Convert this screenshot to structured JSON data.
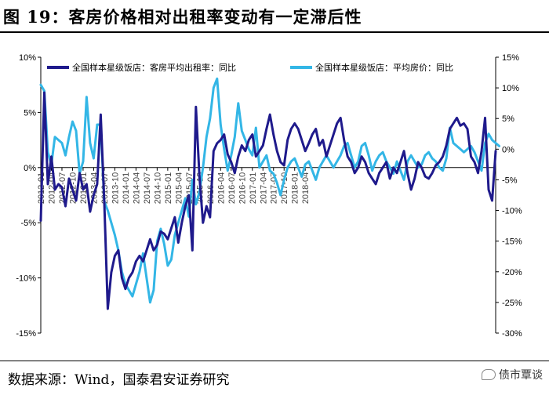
{
  "figure": {
    "title": "图 19：客房价格相对出租率变动有一定滞后性",
    "source": "数据来源：Wind，国泰君安证券研究",
    "watermark": "债市覃谈",
    "watermark_icon": "wechat-icon"
  },
  "chart_data": {
    "type": "line",
    "title": "",
    "x_start": "2012-01",
    "x_end": "2018-04",
    "x_tick_labels": [
      "2012-01",
      "2012-04",
      "2012-07",
      "2012-10",
      "2013-01",
      "2013-04",
      "2013-07",
      "2013-10",
      "2014-01",
      "2014-04",
      "2014-07",
      "2014-10",
      "2015-01",
      "2015-04",
      "2015-07",
      "2015-10",
      "2016-01",
      "2016-04",
      "2016-07",
      "2016-10",
      "2017-01",
      "2017-04",
      "2017-07",
      "2017-10",
      "2018-01",
      "2018-04"
    ],
    "y_left": {
      "min": -15,
      "max": 10,
      "step": 5,
      "unit": "%",
      "tick_labels": [
        "10%",
        "5%",
        "0%",
        "-5%",
        "-10%",
        "-15%"
      ]
    },
    "y_right": {
      "min": -30,
      "max": 15,
      "step": 5,
      "unit": "%",
      "tick_labels": [
        "15%",
        "10%",
        "5%",
        "0%",
        "-5%",
        "-10%",
        "-15%",
        "-20%",
        "-25%",
        "-30%"
      ]
    },
    "legend_position": "top",
    "grid": false,
    "series": [
      {
        "name": "全国样本星级饭店：客房平均出租率：同比",
        "axis": "left",
        "color": "#1f1a8c",
        "values": [
          -4.8,
          6.8,
          -1.5,
          1.0,
          -2.0,
          -1.5,
          -1.8,
          -3.5,
          -1.0,
          -2.0,
          -3.0,
          -0.5,
          -2.0,
          -1.5,
          -4.0,
          -2.5,
          -1.5,
          4.8,
          -3.0,
          -12.8,
          -9.5,
          -8.0,
          -7.5,
          -10.0,
          -11.0,
          -10.0,
          -9.5,
          -8.5,
          -8.0,
          -8.5,
          -7.5,
          -6.5,
          -7.5,
          -7.0,
          -5.8,
          -6.0,
          -6.5,
          -5.5,
          -4.5,
          -6.8,
          -5.0,
          -3.5,
          -2.5,
          -7.5,
          5.5,
          -0.8,
          -5.0,
          -3.5,
          -4.5,
          1.5,
          2.2,
          2.5,
          3.0,
          1.2,
          0.5,
          -0.5,
          1.0,
          2.0,
          1.5,
          2.5,
          3.0,
          1.0,
          1.5,
          2.0,
          3.5,
          4.8,
          3.0,
          1.5,
          0.5,
          0.2,
          2.5,
          3.5,
          4.0,
          3.5,
          2.5,
          1.5,
          2.2,
          3.0,
          3.5,
          2.0,
          2.5,
          1.0,
          2.0,
          3.0,
          4.0,
          4.5,
          2.5,
          1.0,
          0.5,
          -0.5,
          0.0,
          1.0,
          0.5,
          -0.5,
          -1.0,
          -1.5,
          -0.5,
          0.0,
          0.5,
          -1.0,
          0.0,
          -0.5,
          0.5,
          1.5,
          -0.5,
          -2.0,
          -1.0,
          0.5,
          0.0,
          -0.8,
          -1.0,
          -0.5,
          0.2,
          0.5,
          1.0,
          2.0,
          3.5,
          4.0,
          4.5,
          3.8,
          4.0,
          3.5,
          1.0,
          0.5,
          -0.5,
          1.5,
          4.5,
          -2.0,
          -3.0,
          1.5
        ]
      },
      {
        "name": "全国样本星级饭店：平均房价：同比",
        "axis": "right",
        "color": "#33b6e6",
        "values": [
          10.5,
          9.5,
          -0.5,
          -2.5,
          2.0,
          1.5,
          1.0,
          -1.0,
          2.0,
          4.5,
          3.0,
          -4.0,
          -2.0,
          8.5,
          1.0,
          -1.5,
          4.0,
          4.0,
          -8.5,
          -10.0,
          -12.0,
          -14.0,
          -16.5,
          -20.0,
          -22.0,
          -23.0,
          -24.0,
          -22.0,
          -20.0,
          -17.0,
          -21.0,
          -25.0,
          -23.0,
          -15.0,
          -13.0,
          -15.5,
          -19.0,
          -18.0,
          -14.0,
          -12.0,
          -10.0,
          -8.0,
          -11.0,
          -5.0,
          -9.0,
          -7.0,
          -3.0,
          2.0,
          5.0,
          10.0,
          11.5,
          4.0,
          0.0,
          -3.5,
          -1.0,
          2.0,
          7.5,
          3.0,
          1.5,
          0.0,
          -1.0,
          3.5,
          -3.0,
          -2.0,
          -1.0,
          -3.5,
          -4.0,
          -5.5,
          -7.5,
          -5.0,
          -3.0,
          -2.0,
          -1.5,
          -3.0,
          -4.5,
          -2.5,
          -2.0,
          -3.5,
          -5.0,
          -3.0,
          -2.0,
          -1.0,
          -2.0,
          -3.0,
          -2.0,
          -1.0,
          0.5,
          1.0,
          -1.0,
          -3.0,
          -2.0,
          0.5,
          1.0,
          -1.0,
          -3.5,
          -2.0,
          -1.0,
          -0.5,
          -2.0,
          -3.0,
          -4.0,
          -2.0,
          -3.5,
          -5.0,
          -2.0,
          -1.0,
          -2.0,
          -3.0,
          -2.5,
          -1.0,
          -0.5,
          -1.5,
          -2.0,
          -3.0,
          -3.5,
          -1.5,
          3.5,
          1.0,
          0.5,
          0.0,
          -0.5,
          0.0,
          0.5,
          -0.5,
          -2.0,
          -3.5,
          1.0,
          2.5,
          1.5,
          1.0,
          0.5
        ]
      }
    ]
  }
}
